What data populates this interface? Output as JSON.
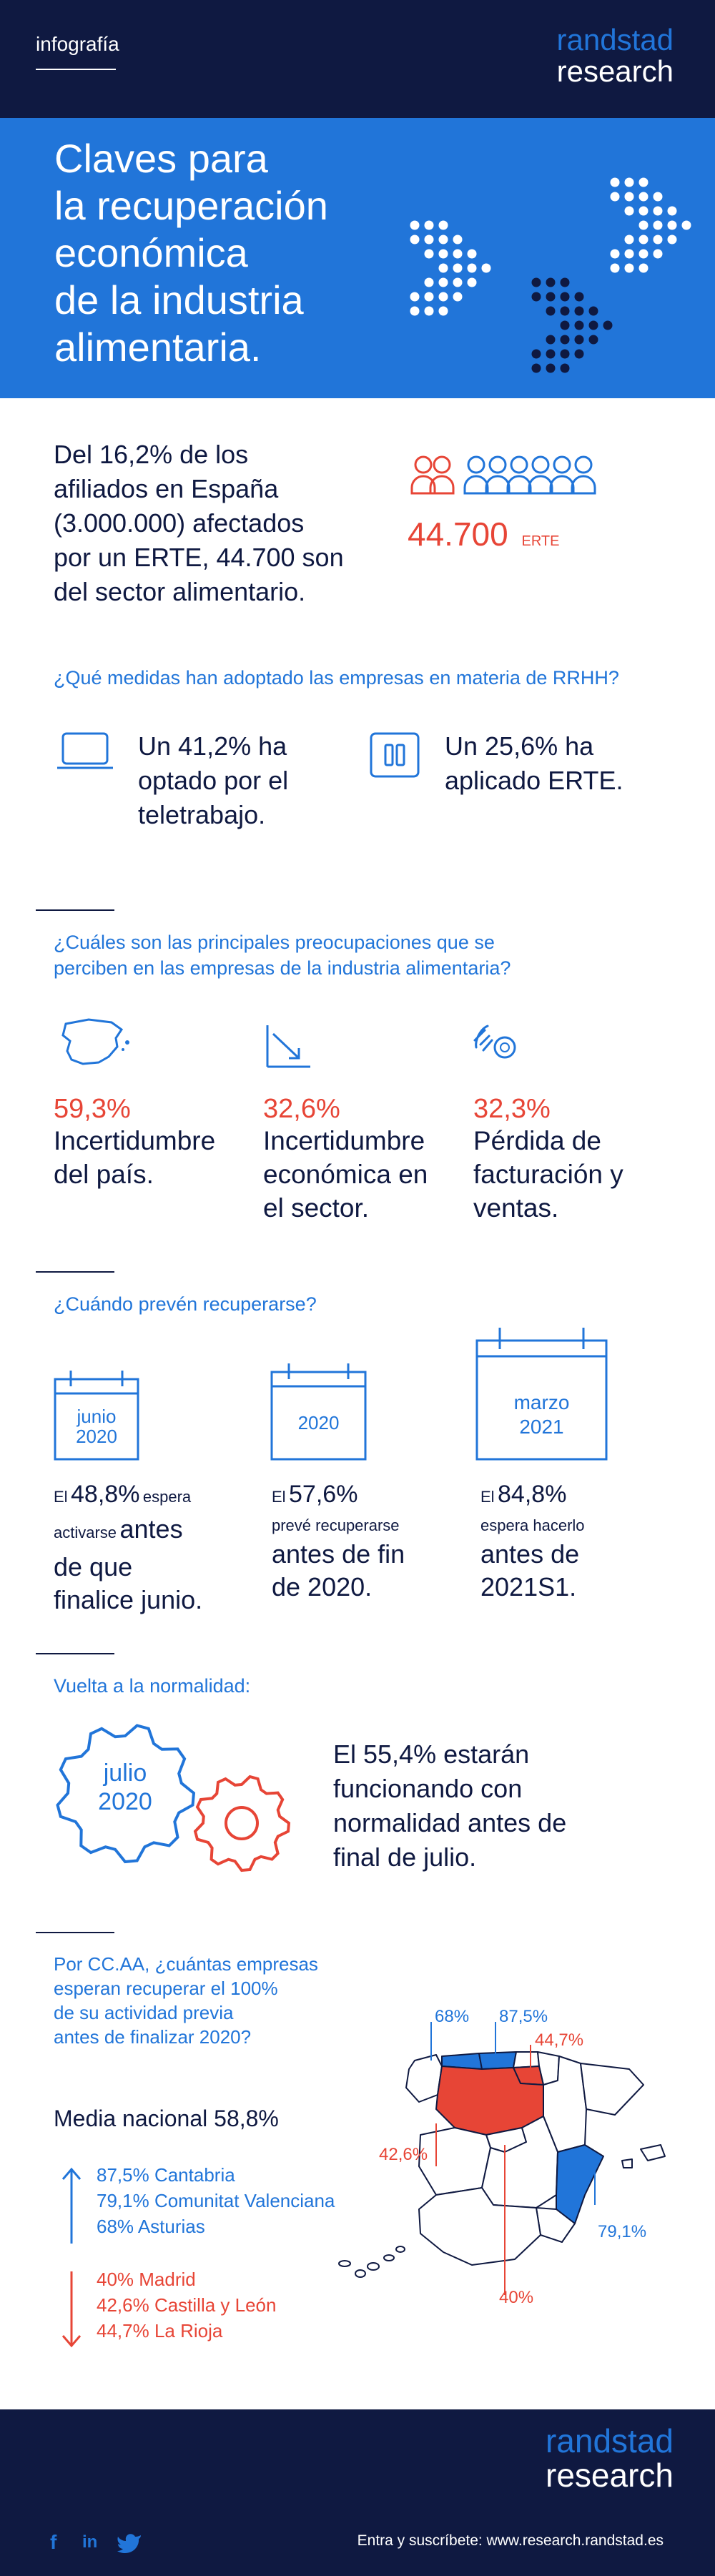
{
  "header": {
    "tag": "infografía",
    "brand_line1": "randstad",
    "brand_line2": "research"
  },
  "hero": {
    "title_lines": [
      "Claves para",
      "la recuperación",
      "económica",
      "de la industria",
      "alimentaria."
    ]
  },
  "section_erte": {
    "text_lines": [
      "Del 16,2% de los",
      "afiliados en España",
      "(3.000.000) afectados",
      "por un ERTE, 44.700 son",
      "del sector alimentario."
    ],
    "value": "44.700",
    "unit": "ERTE"
  },
  "section_rrhh": {
    "question": "¿Qué medidas han adoptado las empresas en materia de RRHH?",
    "items": [
      {
        "icon": "laptop-icon",
        "lines": [
          "Un 41,2% ha",
          "optado por el",
          "teletrabajo."
        ]
      },
      {
        "icon": "pause-icon",
        "lines": [
          "Un 25,6% ha",
          "aplicado ERTE."
        ]
      }
    ]
  },
  "section_concerns": {
    "question_lines": [
      "¿Cuáles son las principales preocupaciones que se",
      "perciben en las empresas de la industria alimentaria?"
    ],
    "items": [
      {
        "icon": "spain-map-icon",
        "pct": "59,3%",
        "lines": [
          "Incertidumbre",
          "del país."
        ]
      },
      {
        "icon": "trend-down-icon",
        "pct": "32,6%",
        "lines": [
          "Incertidumbre",
          "económica en",
          "el sector."
        ]
      },
      {
        "icon": "coin-hand-icon",
        "pct": "32,3%",
        "lines": [
          "Pérdida de",
          "facturación y",
          "ventas."
        ]
      }
    ]
  },
  "section_recovery": {
    "question": "¿Cuándo prevén recuperarse?",
    "items": [
      {
        "cal_lines": [
          "junio",
          "2020"
        ],
        "el": "El",
        "pct": "48,8%",
        "small_a": "espera",
        "small_b": "activarse",
        "rest_a": "antes",
        "rest_lines": [
          "de que",
          "finalice junio."
        ]
      },
      {
        "cal_lines": [
          "2020"
        ],
        "el": "El",
        "pct": "57,6%",
        "small_a": "prevé recuperarse",
        "rest_lines": [
          "antes de fin",
          "de 2020."
        ]
      },
      {
        "cal_lines": [
          "marzo",
          "2021"
        ],
        "el": "El",
        "pct": "84,8%",
        "small_a": "espera hacerlo",
        "rest_lines": [
          "antes de",
          "2021S1."
        ]
      }
    ]
  },
  "section_normal": {
    "question": "Vuelta a la normalidad:",
    "gear_lines": [
      "julio",
      "2020"
    ],
    "text_lines": [
      "El 55,4% estarán",
      "funcionando con",
      "normalidad antes de",
      "final de julio."
    ]
  },
  "section_ccaa": {
    "question_lines": [
      "Por CC.AA, ¿cuántas empresas",
      "esperan recuperar el 100%",
      "de su actividad previa",
      "antes de finalizar 2020?"
    ],
    "media": "Media nacional 58,8%",
    "top": [
      "87,5% Cantabria",
      "79,1% Comunitat Valenciana",
      "68% Asturias"
    ],
    "bottom": [
      "40% Madrid",
      "42,6% Castilla y León",
      "44,7% La Rioja"
    ],
    "map_labels": {
      "asturias": "68%",
      "cantabria": "87,5%",
      "rioja": "44,7%",
      "castilla": "42,6%",
      "valencia": "79,1%",
      "madrid": "40%"
    },
    "colors": {
      "blue": "#2175d9",
      "red": "#e74536",
      "navy": "#0f1941"
    }
  },
  "footer": {
    "brand_line1": "randstad",
    "brand_line2": "research",
    "social": [
      "facebook-icon",
      "linkedin-icon",
      "twitter-icon"
    ],
    "cta": "Entra y suscríbete: www.research.randstad.es"
  }
}
